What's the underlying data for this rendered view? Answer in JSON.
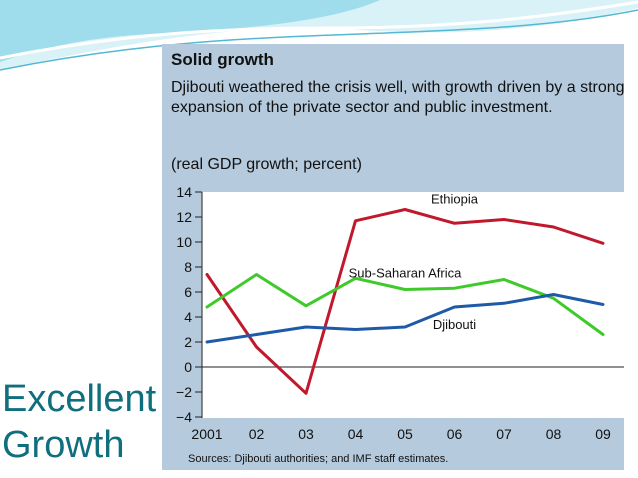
{
  "slide": {
    "title_lines": [
      "Excellent",
      "Growth"
    ],
    "colors": {
      "title": "#0f6f7e",
      "wave_light": "#cfeff7",
      "wave_mid": "#8fd8ea",
      "wave_dark": "#2aa3c0"
    }
  },
  "figure": {
    "heading": "Solid growth",
    "description": "Djibouti weathered the crisis well, with growth driven by a strong expansion of the private sector and public investment.",
    "units": "(real GDP growth; percent)",
    "source": "Sources: Djibouti authorities; and IMF staff estimates.",
    "panel_color": "#b5cadd",
    "plot_color": "#ffffff"
  },
  "chart_data": {
    "type": "line",
    "categories": [
      "2001",
      "02",
      "03",
      "04",
      "05",
      "06",
      "07",
      "08",
      "09"
    ],
    "ylim": [
      -4,
      14
    ],
    "yticks": [
      "14",
      "12",
      "10",
      "8",
      "6",
      "4",
      "2",
      "0",
      "−2",
      "−4"
    ],
    "grid": false,
    "series": [
      {
        "name": "Ethiopia",
        "color": "#c0192c",
        "values": [
          7.4,
          1.6,
          -2.1,
          11.7,
          12.6,
          11.5,
          11.8,
          11.2,
          9.9
        ]
      },
      {
        "name": "Sub-Saharan Africa",
        "color": "#3fca2b",
        "values": [
          4.8,
          7.4,
          4.9,
          7.1,
          6.2,
          6.3,
          7.0,
          5.5,
          2.6
        ]
      },
      {
        "name": "Djibouti",
        "color": "#1f5aa8",
        "values": [
          2.0,
          2.6,
          3.2,
          3.0,
          3.2,
          4.8,
          5.1,
          5.8,
          5.0
        ]
      }
    ]
  }
}
